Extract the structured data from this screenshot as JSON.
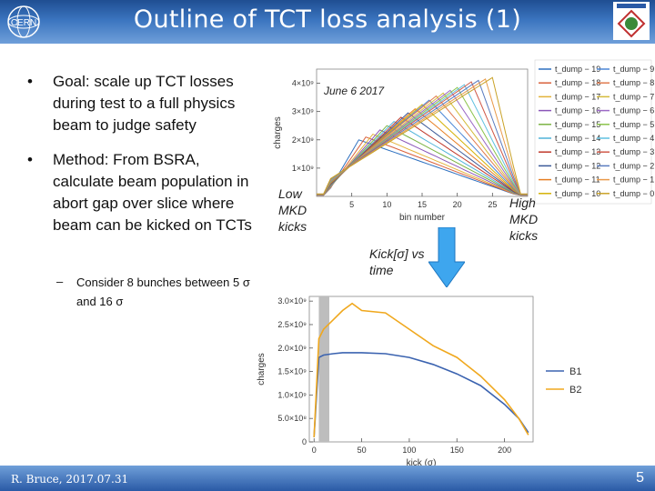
{
  "title": "Outline of TCT loss analysis (1)",
  "logos": {
    "left_icon": "cern-logo",
    "right_icon": "lhc-collimation-logo"
  },
  "bullets": [
    {
      "text": "Goal: scale up TCT losses during test to a full physics beam to judge safety"
    },
    {
      "text": "Method: From BSRA, calculate beam population in abort gap over slice where beam can be kicked on TCTs"
    }
  ],
  "sub_bullet": {
    "dash": "–",
    "text": "Consider 8 bunches between 5 σ and 16 σ"
  },
  "labels": {
    "low_mkd": "Low MKD kicks",
    "high_mkd": "High MKD kicks",
    "kick_vs_time": "Kick[σ] vs time",
    "bullet_marker": "•"
  },
  "colors": {
    "arrow": "#3ea6ee",
    "b1": "#3b63b0",
    "b2": "#f0a81e",
    "band": "#bdbdbd"
  },
  "footer": {
    "author": "R. Bruce, 2017.07.31",
    "page": "5"
  },
  "chart_data": [
    {
      "type": "line",
      "annotation": "June 6 2017",
      "xlabel": "bin number",
      "ylabel": "charges",
      "xlim": [
        0,
        30
      ],
      "ylim": [
        0,
        4500000000
      ],
      "xticks": [
        "5",
        "10",
        "15",
        "20",
        "25"
      ],
      "yticks": [
        "1×10⁹",
        "2×10⁹",
        "3×10⁹",
        "4×10⁹"
      ],
      "legend_placement": "right",
      "legend": [
        [
          "t_dump − 19",
          "t_dump − 9"
        ],
        [
          "t_dump − 18",
          "t_dump − 8"
        ],
        [
          "t_dump − 17",
          "t_dump − 7"
        ],
        [
          "t_dump − 16",
          "t_dump − 6"
        ],
        [
          "t_dump − 15",
          "t_dump − 5"
        ],
        [
          "t_dump − 14",
          "t_dump − 4"
        ],
        [
          "t_dump − 13",
          "t_dump − 3"
        ],
        [
          "t_dump − 12",
          "t_dump − 2"
        ],
        [
          "t_dump − 11",
          "t_dump − 1"
        ],
        [
          "t_dump − 10",
          "t_dump − 0"
        ]
      ],
      "legend_colors": [
        [
          "#2c6fbf",
          "#4a86d6"
        ],
        [
          "#d9603b",
          "#e07b4f"
        ],
        [
          "#e3b33a",
          "#d4bb3a"
        ],
        [
          "#8a56b8",
          "#9c6ac6"
        ],
        [
          "#7bb342",
          "#8bc34a"
        ],
        [
          "#4fb3d9",
          "#5fc0e0"
        ],
        [
          "#c0392b",
          "#d05a4a"
        ],
        [
          "#3b5998",
          "#5a7bbf"
        ],
        [
          "#e67e22",
          "#e99a4a"
        ],
        [
          "#d4b106",
          "#c9a227"
        ]
      ],
      "series_peak_bins": [
        6,
        7,
        8,
        9,
        10,
        11,
        12,
        13,
        14,
        15,
        16,
        17,
        18,
        19,
        20,
        21,
        22,
        23,
        24,
        25
      ],
      "series_peak_values": [
        2000000000,
        2100000000,
        2200000000,
        2350000000,
        2500000000,
        2650000000,
        2800000000,
        2950000000,
        3100000000,
        3250000000,
        3400000000,
        3550000000,
        3650000000,
        3750000000,
        3850000000,
        3950000000,
        4050000000,
        4100000000,
        4150000000,
        4200000000
      ],
      "series_colors": [
        "#2c6fbf",
        "#d9603b",
        "#e3b33a",
        "#8a56b8",
        "#7bb342",
        "#4fb3d9",
        "#c0392b",
        "#3b5998",
        "#e67e22",
        "#d4b106",
        "#4a86d6",
        "#e07b4f",
        "#d4bb3a",
        "#9c6ac6",
        "#8bc34a",
        "#5fc0e0",
        "#d05a4a",
        "#5a7bbf",
        "#e99a4a",
        "#c9a227"
      ]
    },
    {
      "type": "line",
      "xlabel": "kick (σ)",
      "ylabel": "charges",
      "xlim": [
        -5,
        230
      ],
      "ylim": [
        0,
        3100000000
      ],
      "xticks": [
        "0",
        "50",
        "100",
        "150",
        "200"
      ],
      "yticks": [
        "0",
        "5.0×10⁸",
        "1.0×10⁹",
        "1.5×10⁹",
        "2.0×10⁹",
        "2.5×10⁹",
        "3.0×10⁹"
      ],
      "legend_placement": "right",
      "highlight_band": [
        5,
        16
      ],
      "series": [
        {
          "name": "B1",
          "x": [
            0,
            5,
            10,
            20,
            30,
            50,
            75,
            100,
            125,
            150,
            175,
            200,
            215,
            225
          ],
          "y": [
            100000000,
            1800000000,
            1850000000,
            1880000000,
            1900000000,
            1900000000,
            1880000000,
            1800000000,
            1650000000,
            1450000000,
            1200000000,
            800000000,
            500000000,
            200000000
          ]
        },
        {
          "name": "B2",
          "x": [
            0,
            5,
            10,
            20,
            30,
            40,
            50,
            75,
            100,
            125,
            150,
            175,
            200,
            215,
            225
          ],
          "y": [
            100000000,
            2200000000,
            2400000000,
            2600000000,
            2800000000,
            2950000000,
            2800000000,
            2750000000,
            2400000000,
            2050000000,
            1800000000,
            1400000000,
            900000000,
            500000000,
            150000000
          ]
        }
      ]
    }
  ]
}
